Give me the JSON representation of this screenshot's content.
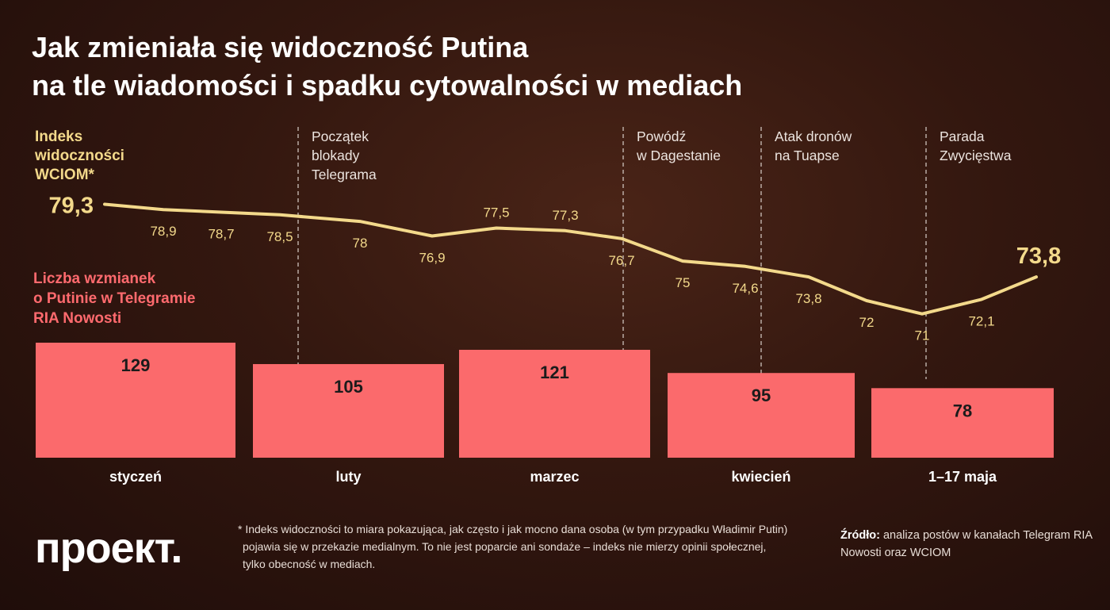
{
  "title_line1": "Jak zmieniała się widoczność Putina",
  "title_line2": "na tle wiadomości i spadku cytowalności w mediach",
  "colors": {
    "line": "#f3d98b",
    "bar": "#fb6a6c",
    "series2_label": "#ff6a6e",
    "series1_label": "#f3d98b"
  },
  "chart_data": {
    "type": "bar+line",
    "categories": [
      "styczeń",
      "luty",
      "marzec",
      "kwiecień",
      "1–17 maja"
    ],
    "bar_series": {
      "name_lines": [
        "Liczba wzmianek",
        "o Putinie w Telegramie",
        "RIA Nowosti"
      ],
      "values": [
        129,
        105,
        121,
        95,
        78
      ]
    },
    "line_series": {
      "name_lines": [
        "Indeks",
        "widoczności",
        "WCIOM*"
      ],
      "values": [
        79.3,
        78.9,
        78.7,
        78.5,
        78,
        76.9,
        77.5,
        77.3,
        76.7,
        75,
        74.6,
        73.8,
        72,
        71,
        72.1,
        73.8
      ],
      "labels": [
        "79,3",
        "78,9",
        "78,7",
        "78,5",
        "78",
        "76,9",
        "77,5",
        "77,3",
        "76,7",
        "75",
        "74,6",
        "73,8",
        "72",
        "71",
        "72,1",
        "73,8"
      ]
    },
    "annotations": [
      {
        "lines": [
          "Początek",
          "blokady",
          "Telegrama"
        ]
      },
      {
        "lines": [
          "Powódź",
          "w Dagestanie"
        ]
      },
      {
        "lines": [
          "Atak dronów",
          "na Tuapse"
        ]
      },
      {
        "lines": [
          "Parada",
          "Zwycięstwa"
        ]
      }
    ]
  },
  "footnote_lines": [
    "* Indeks widoczności to miara pokazująca, jak często i jak mocno dana osoba (w tym przypadku Władimir Putin)",
    "pojawia się w przekazie medialnym. To nie jest poparcie ani sondaże – indeks nie mierzy opinii społecznej,",
    "tylko obecność w mediach."
  ],
  "source_label": "Źródło:",
  "source_text": " analiza postów w kanałach Telegram RIA Nowosti oraz WCIOM",
  "logo": "проект."
}
